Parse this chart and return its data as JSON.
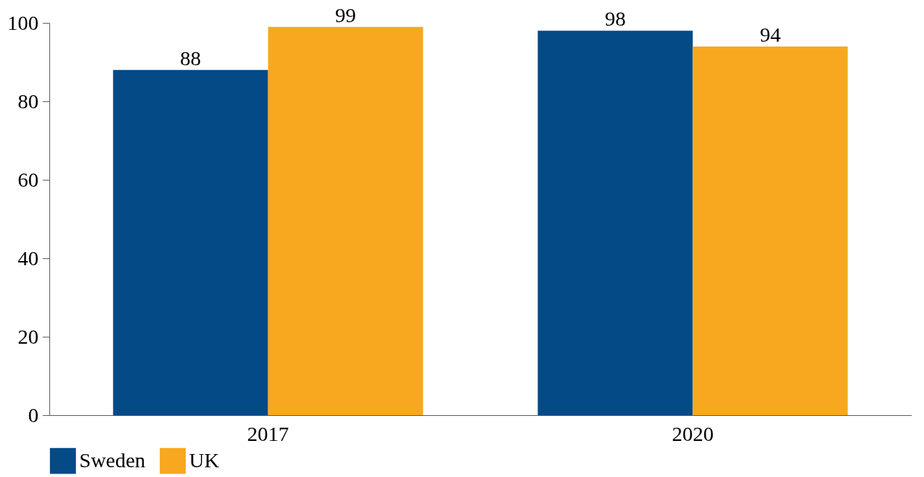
{
  "chart_data": {
    "type": "bar",
    "categories": [
      "2017",
      "2020"
    ],
    "series": [
      {
        "name": "Sweden",
        "color": "#034a87",
        "values": [
          88,
          98
        ]
      },
      {
        "name": "UK",
        "color": "#f7a81e",
        "values": [
          99,
          94
        ]
      }
    ],
    "ylim": [
      0,
      100
    ],
    "yticks": [
      0,
      20,
      40,
      60,
      80,
      100
    ],
    "data_labels": true,
    "legend": "bottom",
    "grid": false
  }
}
